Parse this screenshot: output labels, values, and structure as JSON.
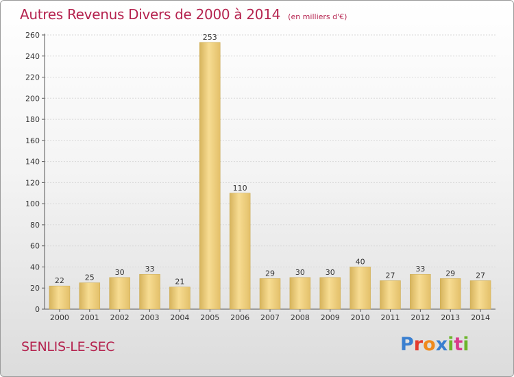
{
  "header": {
    "title": "Autres Revenus Divers de 2000 à 2014",
    "subtitle": "(en milliers d'€)"
  },
  "footer": {
    "city": "SENLIS-LE-SEC",
    "brand_logo": "Proxiti",
    "brand_colors": [
      "#3a7fd0",
      "#e33b2f",
      "#f08a1c",
      "#3a7fd0",
      "#6bb52a",
      "#d83a8a",
      "#6bb52a"
    ]
  },
  "chart_data": {
    "type": "bar",
    "title": "Autres Revenus Divers de 2000 à 2014",
    "subtitle": "(en milliers d'€)",
    "xlabel": "",
    "ylabel": "",
    "categories": [
      "2000",
      "2001",
      "2002",
      "2003",
      "2004",
      "2005",
      "2006",
      "2007",
      "2008",
      "2009",
      "2010",
      "2011",
      "2012",
      "2013",
      "2014"
    ],
    "values": [
      22,
      25,
      30,
      33,
      21,
      253,
      110,
      29,
      30,
      30,
      40,
      27,
      33,
      29,
      27
    ],
    "data_labels": [
      "22",
      "25",
      "30",
      "33",
      "21",
      "253",
      "110",
      "29",
      "30",
      "30",
      "40",
      "27",
      "33",
      "29",
      "27"
    ],
    "ylim": [
      0,
      260
    ],
    "yticks": [
      0,
      20,
      40,
      60,
      80,
      100,
      120,
      140,
      160,
      180,
      200,
      220,
      240,
      260
    ],
    "ytick_labels": [
      "0",
      "20",
      "40",
      "60",
      "80",
      "100",
      "120",
      "140",
      "160",
      "180",
      "200",
      "220",
      "240",
      "260"
    ],
    "grid": true,
    "legend": "none",
    "bar_color": "#e8c97a"
  }
}
